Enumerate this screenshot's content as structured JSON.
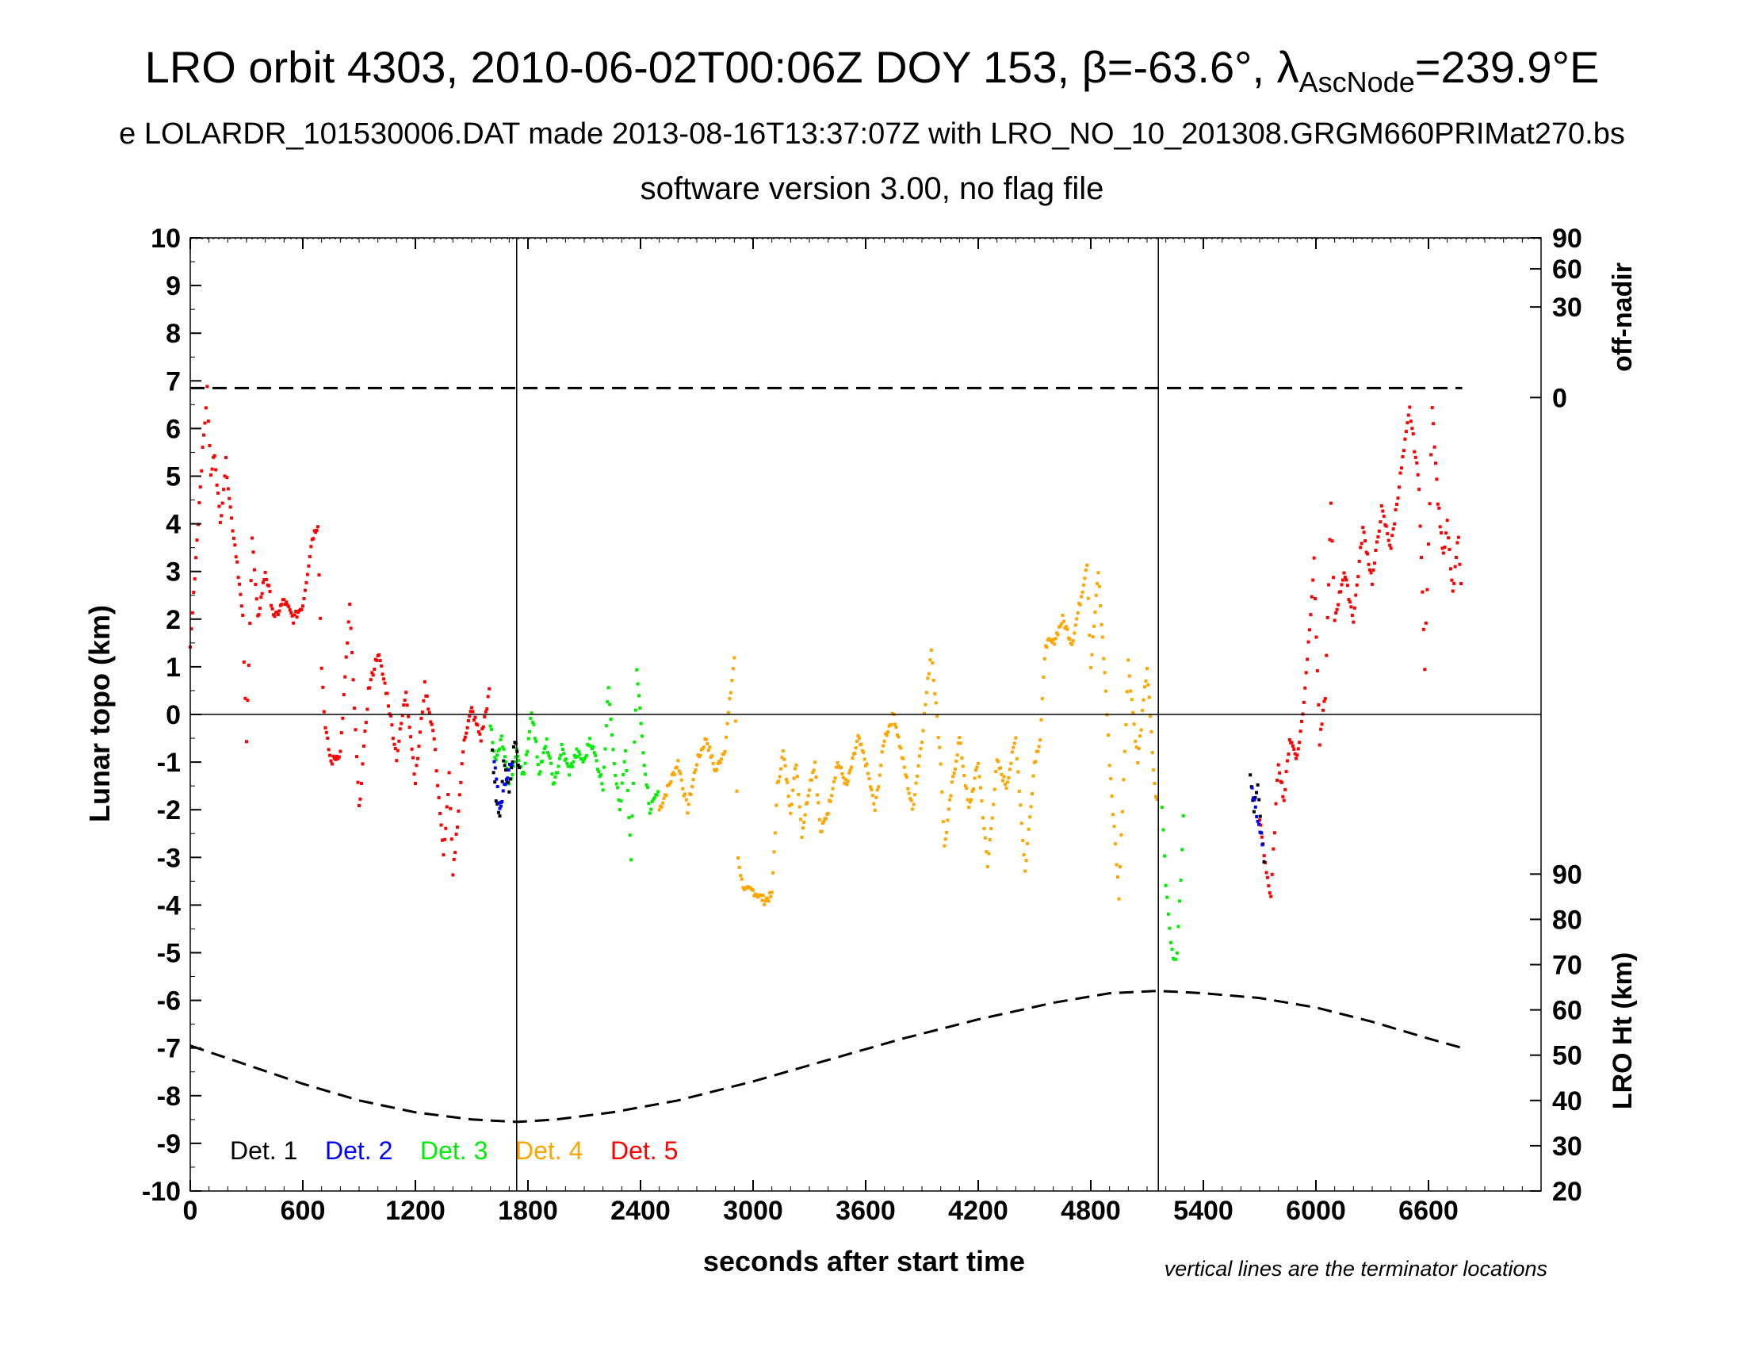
{
  "title": {
    "main_prefix": "LRO orbit 4303, 2010-06-02T00:06Z DOY 153, β=-63.6°, λ",
    "main_sub": "AscNode",
    "main_suffix": "=239.9°E",
    "line2": "e LOLARDR_101530006.DAT made 2013-08-16T13:37:07Z with LRO_NO_10_201308.GRGM660PRIMat270.bs",
    "line3": "software version 3.00, no flag file"
  },
  "chart_data": {
    "type": "scatter",
    "xlabel": "seconds after start time",
    "ylabel": "Lunar topo (km)",
    "y2label_top": "off-nadir",
    "y2label_bottom": "LRO Ht (km)",
    "xlim": [
      0,
      7200
    ],
    "ylim": [
      -10,
      10
    ],
    "xticks": [
      0,
      600,
      1200,
      1800,
      2400,
      3000,
      3600,
      4200,
      4800,
      5400,
      6000,
      6600
    ],
    "yticks": [
      -10,
      -9,
      -8,
      -7,
      -6,
      -5,
      -4,
      -3,
      -2,
      -1,
      0,
      1,
      2,
      3,
      4,
      5,
      6,
      7,
      8,
      9,
      10
    ],
    "offnadir_ticks": [
      {
        "label": "90",
        "y": 10
      },
      {
        "label": "60",
        "y": 9.35
      },
      {
        "label": "30",
        "y": 8.55
      },
      {
        "label": "0",
        "y": 6.65
      }
    ],
    "height_ticks": [
      {
        "label": "90",
        "y": -3.35
      },
      {
        "label": "80",
        "y": -4.3
      },
      {
        "label": "70",
        "y": -5.25
      },
      {
        "label": "60",
        "y": -6.2
      },
      {
        "label": "50",
        "y": -7.15
      },
      {
        "label": "40",
        "y": -8.1
      },
      {
        "label": "30",
        "y": -9.05
      },
      {
        "label": "20",
        "y": -10
      }
    ],
    "terminators_x": [
      1740,
      5160
    ],
    "zero_line": 0,
    "grid": false,
    "note": "vertical lines are the terminator locations",
    "legend_position": "bottom-left",
    "legend": [
      {
        "label": "Det. 1",
        "color": "#000000"
      },
      {
        "label": "Det. 2",
        "color": "#0000ff"
      },
      {
        "label": "Det. 3",
        "color": "#00ee00"
      },
      {
        "label": "Det. 4",
        "color": "#ffa500"
      },
      {
        "label": "Det. 5",
        "color": "#ff0000"
      }
    ],
    "offnadir_trace": {
      "x": [
        0,
        6780
      ],
      "y": [
        6.85,
        6.85
      ]
    },
    "altitude_trace": {
      "x": [
        0,
        300,
        600,
        900,
        1200,
        1500,
        1740,
        1950,
        2250,
        2600,
        3000,
        3400,
        3800,
        4200,
        4600,
        4900,
        5160,
        5400,
        5700,
        6000,
        6300,
        6600,
        6780
      ],
      "y": [
        -6.95,
        -7.35,
        -7.75,
        -8.1,
        -8.35,
        -8.5,
        -8.55,
        -8.5,
        -8.35,
        -8.1,
        -7.7,
        -7.25,
        -6.8,
        -6.4,
        -6.05,
        -5.85,
        -5.8,
        -5.85,
        -5.95,
        -6.15,
        -6.45,
        -6.8,
        -7.0
      ]
    },
    "series": [
      {
        "name": "Det. 5",
        "color": "#ff0000",
        "segments": [
          {
            "x": [
              0,
              30,
              60,
              90,
              110,
              130,
              160,
              190,
              220,
              250,
              280,
              300,
              330,
              360,
              400,
              450,
              500,
              550,
              600,
              650,
              680,
              700,
              720,
              750,
              800,
              850,
              900,
              950,
              1000,
              1050,
              1100,
              1150,
              1200,
              1250,
              1300,
              1350,
              1380,
              1400,
              1430,
              1460,
              1500,
              1550,
              1600
            ],
            "y": [
              1.4,
              3.3,
              5.2,
              6.8,
              5.0,
              5.5,
              4.0,
              5.3,
              4.1,
              3.2,
              2.0,
              -0.6,
              3.7,
              2.0,
              3.0,
              2.0,
              2.4,
              2.0,
              2.3,
              3.7,
              4.0,
              1.0,
              -0.3,
              -1.0,
              -0.8,
              2.3,
              -2.0,
              0.5,
              1.3,
              0.4,
              -0.9,
              0.5,
              -1.4,
              0.6,
              -0.5,
              -3.0,
              -1.3,
              -3.4,
              -2.0,
              -0.5,
              0.1,
              -0.5,
              0.6
            ]
          },
          {
            "x": [
              5700,
              5730,
              5760,
              5780,
              5800,
              5830,
              5860,
              5900,
              5930,
              5960,
              5990,
              6020,
              6050,
              6080,
              6100,
              6150,
              6200,
              6250,
              6300,
              6350,
              6400,
              6450,
              6500,
              6550,
              6580,
              6600,
              6620,
              6650,
              6680,
              6700,
              6730,
              6760,
              6780
            ],
            "y": [
              -2.2,
              -3.1,
              -3.9,
              -2.4,
              -1.0,
              -1.8,
              -0.5,
              -0.9,
              0.0,
              1.5,
              3.2,
              -0.6,
              0.4,
              4.4,
              2.0,
              3.0,
              2.0,
              3.9,
              2.8,
              4.3,
              3.5,
              5.0,
              6.4,
              4.8,
              1.0,
              3.5,
              6.5,
              4.5,
              3.3,
              4.0,
              2.5,
              3.8,
              2.1
            ]
          }
        ]
      },
      {
        "name": "Det. 4",
        "color": "#ffa500",
        "segments": [
          {
            "x": [
              2500,
              2550,
              2600,
              2650,
              2700,
              2750,
              2800,
              2850,
              2900,
              2920,
              2940,
              2960,
              3000,
              3060,
              3100,
              3130,
              3160,
              3200,
              3230,
              3260,
              3300,
              3330,
              3360,
              3400,
              3450,
              3500,
              3560,
              3600,
              3650,
              3700,
              3750,
              3800,
              3850,
              3900,
              3950,
              4000,
              4020,
              4060,
              4100,
              4150,
              4200,
              4250,
              4300,
              4350,
              4400,
              4450,
              4500,
              4530,
              4560,
              4600,
              4650,
              4700,
              4750,
              4780,
              4800,
              4840,
              4880,
              4900,
              4950,
              5000,
              5050,
              5100,
              5140,
              5160
            ],
            "y": [
              -2.0,
              -1.5,
              -1.0,
              -2.0,
              -1.0,
              -0.5,
              -1.2,
              -0.7,
              1.2,
              -3.0,
              -3.5,
              -3.7,
              -3.7,
              -3.9,
              -3.8,
              -1.5,
              -0.8,
              -2.0,
              -1.0,
              -2.5,
              -1.5,
              -1.0,
              -2.5,
              -2.0,
              -1.0,
              -1.5,
              -0.5,
              -1.0,
              -2.0,
              -0.5,
              0.0,
              -1.0,
              -2.0,
              -0.5,
              1.4,
              -1.0,
              -2.8,
              -1.5,
              -0.5,
              -2.0,
              -1.0,
              -3.2,
              -1.0,
              -1.5,
              -0.5,
              -3.3,
              -1.0,
              -0.5,
              1.5,
              1.5,
              2.0,
              1.5,
              2.5,
              3.2,
              1.0,
              3.0,
              0.5,
              -1.0,
              -3.8,
              1.1,
              -1.0,
              1.0,
              -1.5,
              -2.0
            ]
          }
        ]
      },
      {
        "name": "Det. 3",
        "color": "#00ee00",
        "segments": [
          {
            "x": [
              1600,
              1630,
              1660,
              1700,
              1740,
              1780,
              1820,
              1860,
              1900,
              1940,
              1980,
              2020,
              2060,
              2100,
              2130,
              2160,
              2200,
              2230,
              2260,
              2290,
              2320,
              2350,
              2380,
              2420,
              2450,
              2500
            ],
            "y": [
              -0.2,
              -1.0,
              -0.5,
              -1.5,
              -0.8,
              -1.3,
              0.1,
              -1.2,
              -0.6,
              -1.5,
              -0.7,
              -1.2,
              -0.8,
              -1.0,
              -0.5,
              -0.9,
              -1.5,
              0.6,
              -1.0,
              -2.0,
              -0.8,
              -3.0,
              0.9,
              -1.0,
              -2.0,
              -1.5
            ]
          },
          {
            "x": [
              5180,
              5200,
              5220,
              5240,
              5260,
              5280,
              5300
            ],
            "y": [
              -2.0,
              -3.5,
              -4.5,
              -5.2,
              -5.0,
              -3.5,
              -1.5
            ]
          }
        ]
      },
      {
        "name": "Det. 1",
        "color": "#000000",
        "segments": [
          {
            "x": [
              1610,
              1630,
              1650,
              1670,
              1700,
              1730,
              1760
            ],
            "y": [
              -0.8,
              -1.8,
              -2.2,
              -1.0,
              -1.6,
              -0.5,
              -1.3
            ]
          },
          {
            "x": [
              5650,
              5670,
              5690,
              5710,
              5730
            ],
            "y": [
              -1.2,
              -2.0,
              -1.5,
              -2.5,
              -3.4
            ]
          }
        ]
      },
      {
        "name": "Det. 2",
        "color": "#0000ff",
        "segments": [
          {
            "x": [
              1620,
              1650,
              1680,
              1720
            ],
            "y": [
              -1.0,
              -2.0,
              -1.4,
              -0.9
            ]
          },
          {
            "x": [
              5660,
              5690,
              5720
            ],
            "y": [
              -1.6,
              -2.2,
              -2.8
            ]
          }
        ]
      }
    ]
  }
}
